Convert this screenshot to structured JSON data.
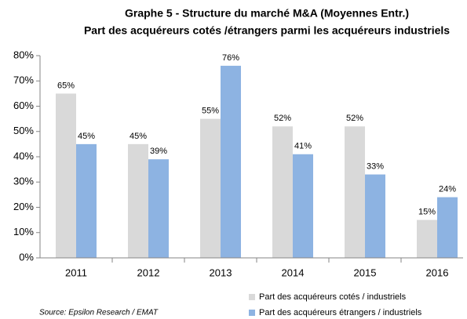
{
  "chart_data": {
    "type": "bar",
    "title": "Graphe 5 - Structure du marché M&A (Moyennes Entr.)",
    "subtitle": "Part des acquéreurs cotés /étrangers parmi les acquéreurs industriels",
    "categories": [
      "2011",
      "2012",
      "2013",
      "2014",
      "2015",
      "2016"
    ],
    "series": [
      {
        "name": "Part des acquéreurs cotés / industriels",
        "color": "#d9d9d9",
        "values": [
          65,
          45,
          55,
          52,
          52,
          15
        ],
        "value_labels": [
          "65%",
          "45%",
          "55%",
          "52%",
          "52%",
          "15%"
        ]
      },
      {
        "name": "Part des acquéreurs étrangers / industriels",
        "color": "#8db3e2",
        "values": [
          45,
          39,
          76,
          41,
          33,
          24
        ],
        "value_labels": [
          "45%",
          "39%",
          "76%",
          "41%",
          "33%",
          "24%"
        ]
      }
    ],
    "ylim": [
      0,
      80
    ],
    "yticks": [
      {
        "value": 0,
        "label": "0%"
      },
      {
        "value": 10,
        "label": "10%"
      },
      {
        "value": 20,
        "label": "20%"
      },
      {
        "value": 30,
        "label": "30%"
      },
      {
        "value": 40,
        "label": "40%"
      },
      {
        "value": 50,
        "label": "50%"
      },
      {
        "value": 60,
        "label": "60%"
      },
      {
        "value": 70,
        "label": "70%"
      },
      {
        "value": 80,
        "label": "80%"
      }
    ],
    "grid": false,
    "legend": "bottom",
    "source": "Source: Epsilon Research / EMAT"
  }
}
